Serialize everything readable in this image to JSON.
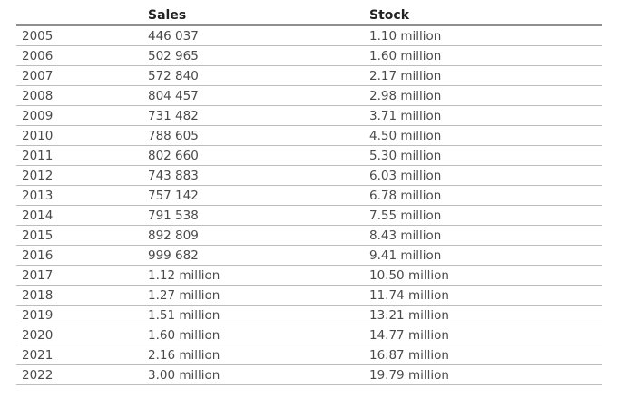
{
  "table": {
    "headers": [
      "",
      "Sales",
      "Stock"
    ],
    "rows": [
      {
        "year": "2005",
        "sales": "446 037",
        "stock": "1.10 million"
      },
      {
        "year": "2006",
        "sales": "502 965",
        "stock": "1.60 million"
      },
      {
        "year": "2007",
        "sales": "572 840",
        "stock": "2.17 million"
      },
      {
        "year": "2008",
        "sales": "804 457",
        "stock": "2.98 million"
      },
      {
        "year": "2009",
        "sales": "731 482",
        "stock": "3.71 million"
      },
      {
        "year": "2010",
        "sales": "788 605",
        "stock": "4.50 million"
      },
      {
        "year": "2011",
        "sales": "802 660",
        "stock": "5.30 million"
      },
      {
        "year": "2012",
        "sales": "743 883",
        "stock": "6.03 million"
      },
      {
        "year": "2013",
        "sales": "757 142",
        "stock": "6.78 million"
      },
      {
        "year": "2014",
        "sales": "791 538",
        "stock": "7.55 million"
      },
      {
        "year": "2015",
        "sales": "892 809",
        "stock": "8.43 million"
      },
      {
        "year": "2016",
        "sales": "999 682",
        "stock": "9.41 million"
      },
      {
        "year": "2017",
        "sales": "1.12 million",
        "stock": "10.50 million"
      },
      {
        "year": "2018",
        "sales": "1.27 million",
        "stock": "11.74 million"
      },
      {
        "year": "2019",
        "sales": "1.51 million",
        "stock": "13.21 million"
      },
      {
        "year": "2020",
        "sales": "1.60 million",
        "stock": "14.77 million"
      },
      {
        "year": "2021",
        "sales": "2.16 million",
        "stock": "16.87 million"
      },
      {
        "year": "2022",
        "sales": "3.00 million",
        "stock": "19.79 million"
      }
    ]
  }
}
